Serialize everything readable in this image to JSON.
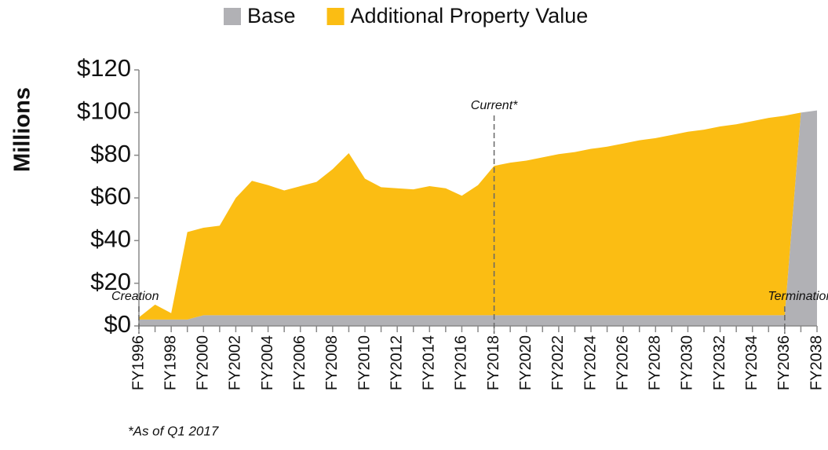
{
  "chart_data": {
    "type": "stacked-area",
    "y_label": "Millions",
    "categories": [
      "FY1996",
      null,
      "FY1998",
      null,
      "FY2000",
      null,
      "FY2002",
      null,
      "FY2004",
      null,
      "FY2006",
      null,
      "FY2008",
      null,
      "FY2010",
      null,
      "FY2012",
      null,
      "FY2014",
      null,
      "FY2016",
      null,
      "FY2018",
      null,
      "FY2020",
      null,
      "FY2022",
      null,
      "FY2024",
      null,
      "FY2026",
      null,
      "FY2028",
      null,
      "FY2030",
      null,
      "FY2032",
      null,
      "FY2034",
      null,
      "FY2036",
      null,
      "FY2038"
    ],
    "series": [
      {
        "name": "Base",
        "color": "#b1b1b5",
        "values": [
          3,
          3,
          3,
          3,
          5,
          5,
          5,
          5,
          5,
          5,
          5,
          5,
          5,
          5,
          5,
          5,
          5,
          5,
          5,
          5,
          5,
          5,
          5,
          5,
          5,
          5,
          5,
          5,
          5,
          5,
          5,
          5,
          5,
          5,
          5,
          5,
          5,
          5,
          5,
          5,
          5,
          100,
          101
        ]
      },
      {
        "name": "Additional Property Value",
        "color": "#fbbd13",
        "values": [
          1,
          7,
          3,
          41,
          41,
          42,
          55,
          63,
          61,
          58.5,
          60.5,
          62.5,
          68.5,
          76,
          64,
          60,
          59.5,
          59,
          60.5,
          59.5,
          56,
          61,
          70,
          71.5,
          72.5,
          74,
          75.5,
          76.5,
          78,
          79,
          80.5,
          82,
          83,
          84.5,
          86,
          87,
          88.5,
          89.5,
          91,
          92.5,
          93.5,
          0,
          0
        ]
      }
    ],
    "ylim": [
      0,
      120
    ],
    "yticks": [
      {
        "value": 0,
        "label": "$0"
      },
      {
        "value": 20,
        "label": "$20"
      },
      {
        "value": 40,
        "label": "$40"
      },
      {
        "value": 60,
        "label": "$60"
      },
      {
        "value": 80,
        "label": "$80"
      },
      {
        "value": 100,
        "label": "$100"
      },
      {
        "value": 120,
        "label": "$120"
      }
    ],
    "annotations": [
      {
        "text": "Creation",
        "x": "FY1996"
      },
      {
        "text": "Current*",
        "x": "FY2018"
      },
      {
        "text": "Termination",
        "x": "FY2036"
      }
    ],
    "footnote": "*As of Q1 2017"
  }
}
